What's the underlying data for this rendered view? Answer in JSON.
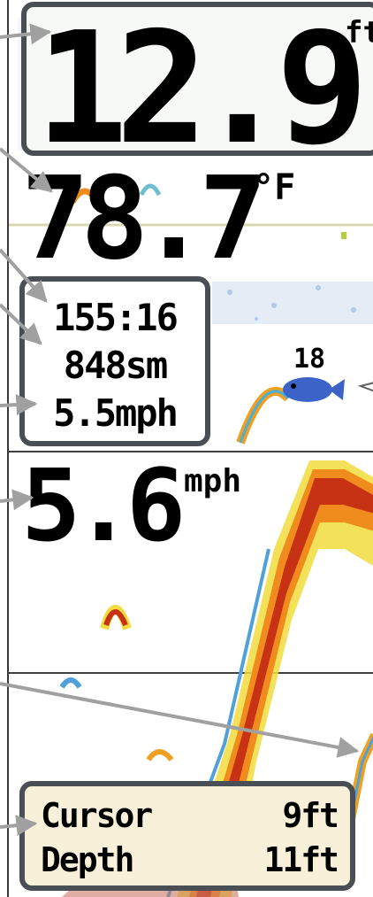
{
  "depth": {
    "value": "12.9",
    "unit": "ft"
  },
  "water_temp": {
    "value": "78.7",
    "unit": "°F"
  },
  "navigation": {
    "timer": "155:16",
    "distance": "848sm",
    "avg_speed": "5.5mph"
  },
  "speed": {
    "value": "5.6",
    "unit": "mph"
  },
  "fish_id": {
    "depth": "18"
  },
  "cursor": {
    "label1": "Cursor",
    "value1": "9ft",
    "label2": "Depth",
    "value2": "11ft"
  },
  "colors": {
    "box_border": "#4a4f55",
    "cursor_box_bg": "#f8f0d8",
    "sonar_strong": "#c83214",
    "sonar_mid": "#f08c1e",
    "sonar_weak": "#f0dc3c",
    "sonar_faint": "#50a0dc",
    "fish_icon": "#3c64c8",
    "callout_arrow": "#a0a0a0"
  }
}
